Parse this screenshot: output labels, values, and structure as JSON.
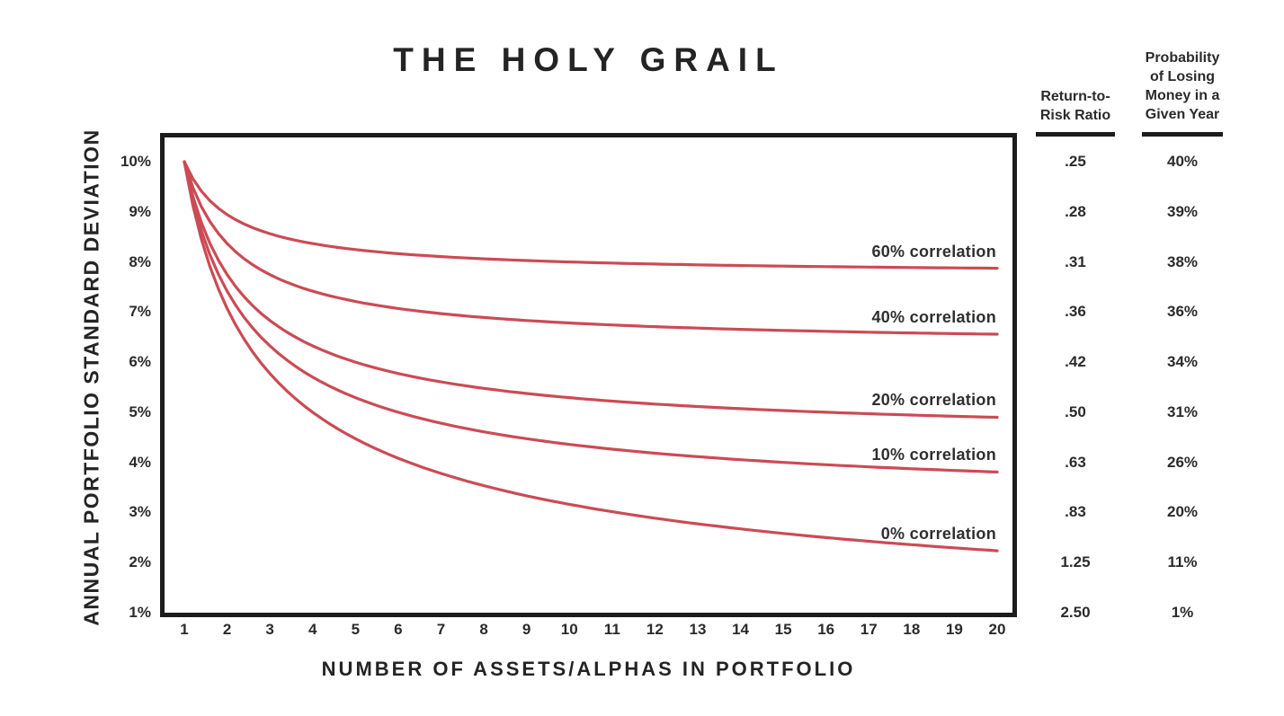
{
  "title": "THE HOLY GRAIL",
  "chart_data": {
    "type": "line",
    "title": "THE HOLY GRAIL",
    "xlabel": "NUMBER OF ASSETS/ALPHAS IN PORTFOLIO",
    "ylabel": "ANNUAL PORTFOLIO STANDARD DEVIATION",
    "x": [
      1,
      2,
      3,
      4,
      5,
      6,
      7,
      8,
      9,
      10,
      11,
      12,
      13,
      14,
      15,
      16,
      17,
      18,
      19,
      20
    ],
    "x_tick_labels": [
      "1",
      "2",
      "3",
      "4",
      "5",
      "6",
      "7",
      "8",
      "9",
      "10",
      "11",
      "12",
      "13",
      "14",
      "15",
      "16",
      "17",
      "18",
      "19",
      "20"
    ],
    "y_tick_labels": [
      "10%",
      "9%",
      "8%",
      "7%",
      "6%",
      "5%",
      "4%",
      "3%",
      "2%",
      "1%"
    ],
    "ylim": [
      1,
      10
    ],
    "xlim": [
      1,
      20
    ],
    "grid": false,
    "legend_position": "inline-right",
    "line_color": "#cb4b55",
    "series": [
      {
        "name": "60% correlation",
        "correlation": 0.6,
        "values": [
          10.0,
          8.94,
          8.56,
          8.37,
          8.25,
          8.16,
          8.11,
          8.06,
          8.03,
          8.0,
          7.98,
          7.96,
          7.94,
          7.93,
          7.92,
          7.91,
          7.9,
          7.89,
          7.88,
          7.87
        ]
      },
      {
        "name": "40% correlation",
        "correlation": 0.4,
        "values": [
          10.0,
          8.37,
          7.75,
          7.42,
          7.21,
          7.07,
          6.97,
          6.89,
          6.83,
          6.78,
          6.74,
          6.71,
          6.68,
          6.66,
          6.63,
          6.61,
          6.6,
          6.58,
          6.57,
          6.56
        ]
      },
      {
        "name": "20% correlation",
        "correlation": 0.2,
        "values": [
          10.0,
          7.75,
          6.83,
          6.32,
          6.0,
          5.77,
          5.61,
          5.48,
          5.37,
          5.29,
          5.22,
          5.16,
          5.11,
          5.07,
          5.03,
          5.0,
          4.97,
          4.94,
          4.92,
          4.9
        ]
      },
      {
        "name": "10% correlation",
        "correlation": 0.1,
        "values": [
          10.0,
          7.42,
          6.32,
          5.7,
          5.29,
          5.0,
          4.78,
          4.61,
          4.47,
          4.36,
          4.26,
          4.18,
          4.11,
          4.05,
          4.0,
          3.95,
          3.91,
          3.87,
          3.84,
          3.81
        ]
      },
      {
        "name": "0% correlation",
        "correlation": 0.0,
        "values": [
          10.0,
          7.07,
          5.77,
          5.0,
          4.47,
          4.08,
          3.78,
          3.54,
          3.33,
          3.16,
          3.02,
          2.89,
          2.77,
          2.67,
          2.58,
          2.5,
          2.43,
          2.36,
          2.29,
          2.24
        ]
      }
    ]
  },
  "risk_table": {
    "columns": [
      {
        "header_lines": [
          "Return-to-",
          "Risk Ratio"
        ],
        "values": [
          ".25",
          ".28",
          ".31",
          ".36",
          ".42",
          ".50",
          ".63",
          ".83",
          "1.25",
          "2.50"
        ]
      },
      {
        "header_lines": [
          "Probability",
          "of Losing",
          "Money in a",
          "Given Year"
        ],
        "values": [
          "40%",
          "39%",
          "38%",
          "36%",
          "34%",
          "31%",
          "26%",
          "20%",
          "11%",
          "1%"
        ]
      }
    ]
  }
}
